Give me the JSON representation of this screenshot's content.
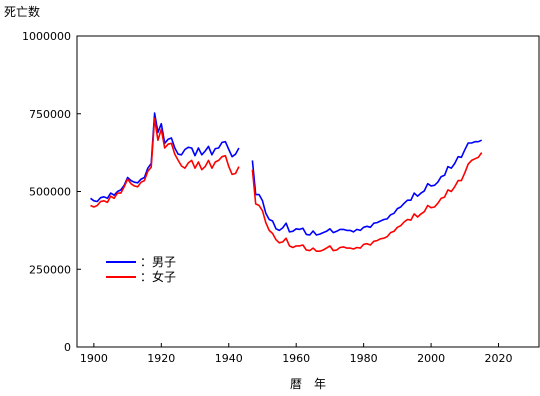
{
  "chart_data": {
    "type": "line",
    "title": "",
    "ylabel": "死亡数",
    "xlabel": "暦　年",
    "xlim": [
      1895,
      2032
    ],
    "ylim": [
      0,
      1000000
    ],
    "x_ticks": [
      1900,
      1920,
      1940,
      1960,
      1980,
      2000,
      2020
    ],
    "y_ticks": [
      0,
      250000,
      500000,
      750000,
      1000000
    ],
    "x_tick_labels": [
      "1900",
      "1920",
      "1940",
      "1960",
      "1980",
      "2000",
      "2020"
    ],
    "y_tick_labels": [
      "0",
      "250000",
      "500000",
      "750000",
      "1000000"
    ],
    "grid": false,
    "legend_position": "left-middle",
    "series": [
      {
        "name": "：男子",
        "color": "#0000ff",
        "segments": [
          [
            [
              1899,
              478000
            ],
            [
              1900,
              470000
            ],
            [
              1901,
              468000
            ],
            [
              1902,
              480000
            ],
            [
              1903,
              483000
            ],
            [
              1904,
              478000
            ],
            [
              1905,
              495000
            ],
            [
              1906,
              488000
            ],
            [
              1907,
              500000
            ],
            [
              1908,
              505000
            ],
            [
              1909,
              520000
            ],
            [
              1910,
              545000
            ],
            [
              1911,
              535000
            ],
            [
              1912,
              530000
            ],
            [
              1913,
              528000
            ],
            [
              1914,
              540000
            ],
            [
              1915,
              545000
            ],
            [
              1916,
              575000
            ],
            [
              1917,
              590000
            ],
            [
              1918,
              752000
            ],
            [
              1919,
              690000
            ],
            [
              1920,
              718000
            ],
            [
              1921,
              655000
            ],
            [
              1922,
              668000
            ],
            [
              1923,
              672000
            ],
            [
              1924,
              640000
            ],
            [
              1925,
              620000
            ],
            [
              1926,
              618000
            ],
            [
              1927,
              635000
            ],
            [
              1928,
              642000
            ],
            [
              1929,
              640000
            ],
            [
              1930,
              615000
            ],
            [
              1931,
              640000
            ],
            [
              1932,
              618000
            ],
            [
              1933,
              630000
            ],
            [
              1934,
              645000
            ],
            [
              1935,
              618000
            ],
            [
              1936,
              638000
            ],
            [
              1937,
              640000
            ],
            [
              1938,
              658000
            ],
            [
              1939,
              660000
            ],
            [
              1940,
              635000
            ],
            [
              1941,
              612000
            ],
            [
              1942,
              620000
            ],
            [
              1943,
              640000
            ]
          ],
          [
            [
              1947,
              600000
            ],
            [
              1948,
              490000
            ],
            [
              1949,
              490000
            ],
            [
              1950,
              470000
            ],
            [
              1951,
              430000
            ],
            [
              1952,
              410000
            ],
            [
              1953,
              405000
            ],
            [
              1954,
              380000
            ],
            [
              1955,
              375000
            ],
            [
              1956,
              383000
            ],
            [
              1957,
              398000
            ],
            [
              1958,
              370000
            ],
            [
              1959,
              372000
            ],
            [
              1960,
              380000
            ],
            [
              1961,
              378000
            ],
            [
              1962,
              382000
            ],
            [
              1963,
              362000
            ],
            [
              1964,
              360000
            ],
            [
              1965,
              373000
            ],
            [
              1966,
              360000
            ],
            [
              1967,
              363000
            ],
            [
              1968,
              368000
            ],
            [
              1969,
              372000
            ],
            [
              1970,
              380000
            ],
            [
              1971,
              368000
            ],
            [
              1972,
              372000
            ],
            [
              1973,
              378000
            ],
            [
              1974,
              378000
            ],
            [
              1975,
              375000
            ],
            [
              1976,
              375000
            ],
            [
              1977,
              370000
            ],
            [
              1978,
              378000
            ],
            [
              1979,
              375000
            ],
            [
              1980,
              385000
            ],
            [
              1981,
              388000
            ],
            [
              1982,
              385000
            ],
            [
              1983,
              398000
            ],
            [
              1984,
              400000
            ],
            [
              1985,
              405000
            ],
            [
              1986,
              410000
            ],
            [
              1987,
              412000
            ],
            [
              1988,
              425000
            ],
            [
              1989,
              430000
            ],
            [
              1990,
              445000
            ],
            [
              1991,
              450000
            ],
            [
              1992,
              462000
            ],
            [
              1993,
              472000
            ],
            [
              1994,
              472000
            ],
            [
              1995,
              495000
            ],
            [
              1996,
              485000
            ],
            [
              1997,
              495000
            ],
            [
              1998,
              502000
            ],
            [
              1999,
              525000
            ],
            [
              2000,
              518000
            ],
            [
              2001,
              520000
            ],
            [
              2002,
              530000
            ],
            [
              2003,
              548000
            ],
            [
              2004,
              552000
            ],
            [
              2005,
              580000
            ],
            [
              2006,
              575000
            ],
            [
              2007,
              590000
            ],
            [
              2008,
              612000
            ],
            [
              2009,
              610000
            ],
            [
              2010,
              634000
            ],
            [
              2011,
              656000
            ],
            [
              2012,
              656000
            ],
            [
              2013,
              660000
            ],
            [
              2014,
              660000
            ],
            [
              2015,
              665000
            ]
          ]
        ]
      },
      {
        "name": "：女子",
        "color": "#ff0000",
        "segments": [
          [
            [
              1899,
              455000
            ],
            [
              1900,
              450000
            ],
            [
              1901,
              455000
            ],
            [
              1902,
              468000
            ],
            [
              1903,
              470000
            ],
            [
              1904,
              465000
            ],
            [
              1905,
              485000
            ],
            [
              1906,
              478000
            ],
            [
              1907,
              495000
            ],
            [
              1908,
              495000
            ],
            [
              1909,
              515000
            ],
            [
              1910,
              540000
            ],
            [
              1911,
              525000
            ],
            [
              1912,
              518000
            ],
            [
              1913,
              515000
            ],
            [
              1914,
              530000
            ],
            [
              1915,
              535000
            ],
            [
              1916,
              565000
            ],
            [
              1917,
              578000
            ],
            [
              1918,
              735000
            ],
            [
              1919,
              665000
            ],
            [
              1920,
              700000
            ],
            [
              1921,
              640000
            ],
            [
              1922,
              652000
            ],
            [
              1923,
              655000
            ],
            [
              1924,
              620000
            ],
            [
              1925,
              600000
            ],
            [
              1926,
              582000
            ],
            [
              1927,
              575000
            ],
            [
              1928,
              592000
            ],
            [
              1929,
              600000
            ],
            [
              1930,
              575000
            ],
            [
              1931,
              595000
            ],
            [
              1932,
              570000
            ],
            [
              1933,
              580000
            ],
            [
              1934,
              600000
            ],
            [
              1935,
              575000
            ],
            [
              1936,
              595000
            ],
            [
              1937,
              600000
            ],
            [
              1938,
              612000
            ],
            [
              1939,
              615000
            ],
            [
              1940,
              580000
            ],
            [
              1941,
              555000
            ],
            [
              1942,
              558000
            ],
            [
              1943,
              580000
            ]
          ],
          [
            [
              1947,
              570000
            ],
            [
              1948,
              460000
            ],
            [
              1949,
              455000
            ],
            [
              1950,
              438000
            ],
            [
              1951,
              400000
            ],
            [
              1952,
              375000
            ],
            [
              1953,
              365000
            ],
            [
              1954,
              345000
            ],
            [
              1955,
              335000
            ],
            [
              1956,
              338000
            ],
            [
              1957,
              350000
            ],
            [
              1958,
              325000
            ],
            [
              1959,
              320000
            ],
            [
              1960,
              325000
            ],
            [
              1961,
              325000
            ],
            [
              1962,
              328000
            ],
            [
              1963,
              312000
            ],
            [
              1964,
              310000
            ],
            [
              1965,
              318000
            ],
            [
              1966,
              308000
            ],
            [
              1967,
              308000
            ],
            [
              1968,
              312000
            ],
            [
              1969,
              318000
            ],
            [
              1970,
              325000
            ],
            [
              1971,
              310000
            ],
            [
              1972,
              312000
            ],
            [
              1973,
              320000
            ],
            [
              1974,
              322000
            ],
            [
              1975,
              318000
            ],
            [
              1976,
              318000
            ],
            [
              1977,
              315000
            ],
            [
              1978,
              320000
            ],
            [
              1979,
              318000
            ],
            [
              1980,
              330000
            ],
            [
              1981,
              332000
            ],
            [
              1982,
              328000
            ],
            [
              1983,
              340000
            ],
            [
              1984,
              342000
            ],
            [
              1985,
              348000
            ],
            [
              1986,
              350000
            ],
            [
              1987,
              355000
            ],
            [
              1988,
              368000
            ],
            [
              1989,
              372000
            ],
            [
              1990,
              385000
            ],
            [
              1991,
              390000
            ],
            [
              1992,
              402000
            ],
            [
              1993,
              410000
            ],
            [
              1994,
              408000
            ],
            [
              1995,
              428000
            ],
            [
              1996,
              418000
            ],
            [
              1997,
              428000
            ],
            [
              1998,
              435000
            ],
            [
              1999,
              455000
            ],
            [
              2000,
              448000
            ],
            [
              2001,
              450000
            ],
            [
              2002,
              462000
            ],
            [
              2003,
              478000
            ],
            [
              2004,
              482000
            ],
            [
              2005,
              505000
            ],
            [
              2006,
              500000
            ],
            [
              2007,
              515000
            ],
            [
              2008,
              535000
            ],
            [
              2009,
              535000
            ],
            [
              2010,
              560000
            ],
            [
              2011,
              588000
            ],
            [
              2012,
              600000
            ],
            [
              2013,
              605000
            ],
            [
              2014,
              610000
            ],
            [
              2015,
              625000
            ]
          ]
        ]
      }
    ]
  }
}
